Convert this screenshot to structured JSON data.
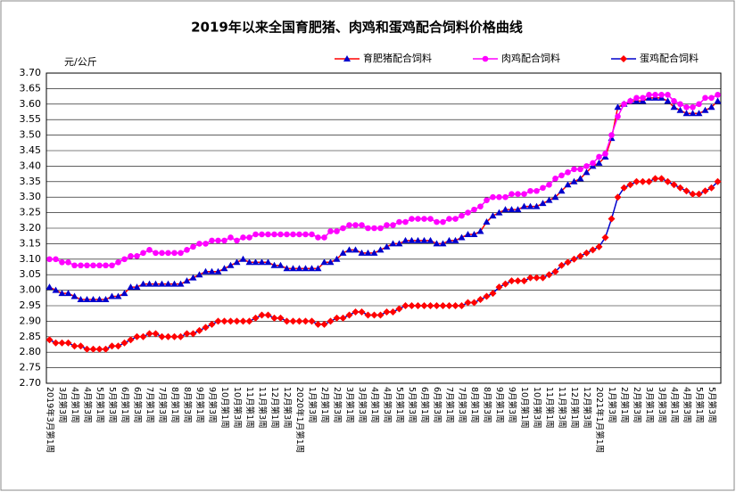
{
  "chart_data": {
    "type": "line",
    "title": "2019年以来全国育肥猪、肉鸡和蛋鸡配合饲料价格曲线",
    "y_unit": "元/公斤",
    "categories": [
      "2019年3月第1周",
      null,
      "3月第3周",
      null,
      "4月第1周",
      null,
      "4月第3周",
      null,
      "5月第1周",
      null,
      "5月第3周",
      null,
      "6月第1周",
      null,
      "6月第3周",
      null,
      "7月第1周",
      null,
      "7月第3周",
      null,
      "8月第1周",
      null,
      "8月第3周",
      null,
      "9月第1周",
      null,
      "9月第3周",
      null,
      "10月第1周",
      null,
      "10月第3周",
      null,
      "11月第1周",
      null,
      "11月第3周",
      null,
      "12月第1周",
      null,
      "12月第3周",
      null,
      "2020年1月第1周",
      null,
      "1月第3周",
      null,
      "2月第1周",
      null,
      "2月第3周",
      null,
      "3月第1周",
      null,
      "3月第3周",
      null,
      "4月第1周",
      null,
      "4月第3周",
      null,
      "5月第1周",
      null,
      "5月第3周",
      null,
      "6月第1周",
      null,
      "6月第3周",
      null,
      "7月第1周",
      null,
      "7月第3周",
      null,
      "8月第1周",
      null,
      "8月第3周",
      null,
      "9月第1周",
      null,
      "9月第3周",
      null,
      "10月第1周",
      null,
      "10月第3周",
      null,
      "11月第1周",
      null,
      "11月第3周",
      null,
      "12月第1周",
      null,
      "12月第3周",
      null,
      "2021年1月第1周",
      null,
      "1月第3周",
      null,
      "2月第1周",
      null,
      "2月第3周",
      null,
      "3月第1周",
      null,
      "3月第3周",
      null,
      "4月第1周",
      null,
      "4月第3周",
      null,
      "5月第1周",
      null,
      "5月第3周",
      null
    ],
    "series": [
      {
        "name": "育肥猪配合饲料",
        "color": "#ff0000",
        "marker_color": "#0000cc",
        "marker": "triangle",
        "values": [
          3.01,
          3.0,
          2.99,
          2.99,
          2.98,
          2.97,
          2.97,
          2.97,
          2.97,
          2.97,
          2.98,
          2.98,
          2.99,
          3.01,
          3.01,
          3.02,
          3.02,
          3.02,
          3.02,
          3.02,
          3.02,
          3.02,
          3.03,
          3.04,
          3.05,
          3.06,
          3.06,
          3.06,
          3.07,
          3.08,
          3.09,
          3.1,
          3.09,
          3.09,
          3.09,
          3.09,
          3.08,
          3.08,
          3.07,
          3.07,
          3.07,
          3.07,
          3.07,
          3.07,
          3.09,
          3.09,
          3.1,
          3.12,
          3.13,
          3.13,
          3.12,
          3.12,
          3.12,
          3.13,
          3.14,
          3.15,
          3.15,
          3.16,
          3.16,
          3.16,
          3.16,
          3.16,
          3.15,
          3.15,
          3.16,
          3.16,
          3.17,
          3.18,
          3.18,
          3.19,
          3.22,
          3.24,
          3.25,
          3.26,
          3.26,
          3.26,
          3.27,
          3.27,
          3.27,
          3.28,
          3.29,
          3.3,
          3.32,
          3.34,
          3.35,
          3.36,
          3.38,
          3.4,
          3.41,
          3.43,
          3.49,
          3.59,
          3.6,
          3.61,
          3.61,
          3.61,
          3.62,
          3.62,
          3.62,
          3.61,
          3.59,
          3.58,
          3.57,
          3.57,
          3.57,
          3.58,
          3.59,
          3.61
        ]
      },
      {
        "name": "肉鸡配合饲料",
        "color": "#ff00ff",
        "marker_color": "#ff00ff",
        "marker": "circle",
        "values": [
          3.1,
          3.1,
          3.09,
          3.09,
          3.08,
          3.08,
          3.08,
          3.08,
          3.08,
          3.08,
          3.08,
          3.09,
          3.1,
          3.11,
          3.11,
          3.12,
          3.13,
          3.12,
          3.12,
          3.12,
          3.12,
          3.12,
          3.13,
          3.14,
          3.15,
          3.15,
          3.16,
          3.16,
          3.16,
          3.17,
          3.16,
          3.17,
          3.17,
          3.18,
          3.18,
          3.18,
          3.18,
          3.18,
          3.18,
          3.18,
          3.18,
          3.18,
          3.18,
          3.17,
          3.17,
          3.19,
          3.19,
          3.2,
          3.21,
          3.21,
          3.21,
          3.2,
          3.2,
          3.2,
          3.21,
          3.21,
          3.22,
          3.22,
          3.23,
          3.23,
          3.23,
          3.23,
          3.22,
          3.22,
          3.23,
          3.23,
          3.24,
          3.25,
          3.26,
          3.27,
          3.29,
          3.3,
          3.3,
          3.3,
          3.31,
          3.31,
          3.31,
          3.32,
          3.32,
          3.33,
          3.34,
          3.36,
          3.37,
          3.38,
          3.39,
          3.39,
          3.4,
          3.41,
          3.43,
          3.44,
          3.5,
          3.56,
          3.6,
          3.61,
          3.62,
          3.62,
          3.63,
          3.63,
          3.63,
          3.63,
          3.61,
          3.6,
          3.59,
          3.59,
          3.6,
          3.62,
          3.62,
          3.63
        ]
      },
      {
        "name": "蛋鸡配合饲料",
        "color": "#0000cc",
        "marker_color": "#ff0000",
        "marker": "diamond",
        "values": [
          2.84,
          2.83,
          2.83,
          2.83,
          2.82,
          2.82,
          2.81,
          2.81,
          2.81,
          2.81,
          2.82,
          2.82,
          2.83,
          2.84,
          2.85,
          2.85,
          2.86,
          2.86,
          2.85,
          2.85,
          2.85,
          2.85,
          2.86,
          2.86,
          2.87,
          2.88,
          2.89,
          2.9,
          2.9,
          2.9,
          2.9,
          2.9,
          2.9,
          2.91,
          2.92,
          2.92,
          2.91,
          2.91,
          2.9,
          2.9,
          2.9,
          2.9,
          2.9,
          2.89,
          2.89,
          2.9,
          2.91,
          2.91,
          2.92,
          2.93,
          2.93,
          2.92,
          2.92,
          2.92,
          2.93,
          2.93,
          2.94,
          2.95,
          2.95,
          2.95,
          2.95,
          2.95,
          2.95,
          2.95,
          2.95,
          2.95,
          2.95,
          2.96,
          2.96,
          2.97,
          2.98,
          2.99,
          3.01,
          3.02,
          3.03,
          3.03,
          3.03,
          3.04,
          3.04,
          3.04,
          3.05,
          3.06,
          3.08,
          3.09,
          3.1,
          3.11,
          3.12,
          3.13,
          3.14,
          3.17,
          3.23,
          3.3,
          3.33,
          3.34,
          3.35,
          3.35,
          3.35,
          3.36,
          3.36,
          3.35,
          3.34,
          3.33,
          3.32,
          3.31,
          3.31,
          3.32,
          3.33,
          3.35
        ]
      }
    ],
    "ylim": [
      2.7,
      3.7
    ],
    "yticks": [
      {
        "value": 2.7,
        "label": "2.70"
      },
      {
        "value": 2.75,
        "label": "2.75"
      },
      {
        "value": 2.8,
        "label": "2.80"
      },
      {
        "value": 2.85,
        "label": "2.85"
      },
      {
        "value": 2.9,
        "label": "2.90"
      },
      {
        "value": 2.95,
        "label": "2.95"
      },
      {
        "value": 3.0,
        "label": "3.00"
      },
      {
        "value": 3.05,
        "label": "3.05"
      },
      {
        "value": 3.1,
        "label": "3.10"
      },
      {
        "value": 3.15,
        "label": "3.15"
      },
      {
        "value": 3.2,
        "label": "3.20"
      },
      {
        "value": 3.25,
        "label": "3.25"
      },
      {
        "value": 3.3,
        "label": "3.30"
      },
      {
        "value": 3.35,
        "label": "3.35"
      },
      {
        "value": 3.4,
        "label": "3.40"
      },
      {
        "value": 3.45,
        "label": "3.45"
      },
      {
        "value": 3.5,
        "label": "3.50"
      },
      {
        "value": 3.55,
        "label": "3.55"
      },
      {
        "value": 3.6,
        "label": "3.60"
      },
      {
        "value": 3.65,
        "label": "3.65"
      },
      {
        "value": 3.7,
        "label": "3.70"
      }
    ],
    "grid": true,
    "legend": "top"
  }
}
